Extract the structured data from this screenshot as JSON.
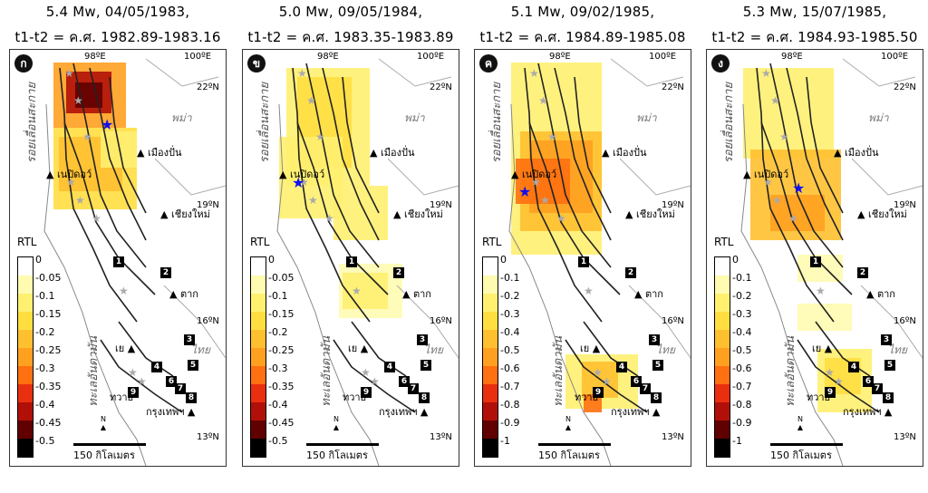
{
  "common": {
    "lat_labels": [
      "22ºN",
      "19ºN",
      "16ºN",
      "13ºN"
    ],
    "lon_labels": [
      "98ºE",
      "100ºE"
    ],
    "fault_label": "รอยเลื่อนสะกาย",
    "sea_label": "ทะเลอันดามัน",
    "country_myanmar": "พม่า",
    "country_thailand": "ไทย",
    "cities": [
      "เมืองปั่น",
      "เนปิดอว์",
      "เชียงใหม่",
      "ตาก",
      "เย",
      "ทวาย",
      "กรุงเทพฯ"
    ],
    "boxes": [
      "1",
      "2",
      "3",
      "4",
      "5",
      "6",
      "7",
      "8",
      "9"
    ],
    "rtl_label": "RTL",
    "scale_label": "150 กิโลเมตร",
    "north_label": "N"
  },
  "panels": [
    {
      "id": "ก",
      "title1": "5.4 Mw, 04/05/1983,",
      "title2": "t1-t2 = ค.ศ. 1982.89-1983.16",
      "ticks": [
        "0",
        "-0.05",
        "-0.1",
        "-0.15",
        "-0.2",
        "-0.25",
        "-0.3",
        "-0.35",
        "-0.4",
        "-0.45",
        "-0.5"
      ]
    },
    {
      "id": "ข",
      "title1": "5.0 Mw, 09/05/1984,",
      "title2": "t1-t2 = ค.ศ. 1983.35-1983.89",
      "ticks": [
        "0",
        "-0.05",
        "-0.1",
        "-0.15",
        "-0.2",
        "-0.25",
        "-0.3",
        "-0.35",
        "-0.4",
        "-0.45",
        "-0.5"
      ]
    },
    {
      "id": "ค",
      "title1": "5.1 Mw, 09/02/1985,",
      "title2": "t1-t2 = ค.ศ. 1984.89-1985.08",
      "ticks": [
        "0",
        "-0.1",
        "-0.2",
        "-0.3",
        "-0.4",
        "-0.5",
        "-0.6",
        "-0.7",
        "-0.8",
        "-0.9",
        "-1"
      ]
    },
    {
      "id": "ง",
      "title1": "5.3 Mw, 15/07/1985,",
      "title2": "t1-t2 = ค.ศ. 1984.93-1985.50",
      "ticks": [
        "0",
        "-0.1",
        "-0.2",
        "-0.3",
        "-0.4",
        "-0.5",
        "-0.6",
        "-0.7",
        "-0.8",
        "-0.9",
        "-1"
      ]
    }
  ],
  "colors": {
    "scale": [
      "#ffffff",
      "#fffbb0",
      "#fff070",
      "#ffde40",
      "#ffc030",
      "#ffa020",
      "#ff7010",
      "#e83010",
      "#b01008",
      "#600000",
      "#000000"
    ],
    "star_blue": "#1010ee",
    "star_gray": "#aaaaaa"
  }
}
